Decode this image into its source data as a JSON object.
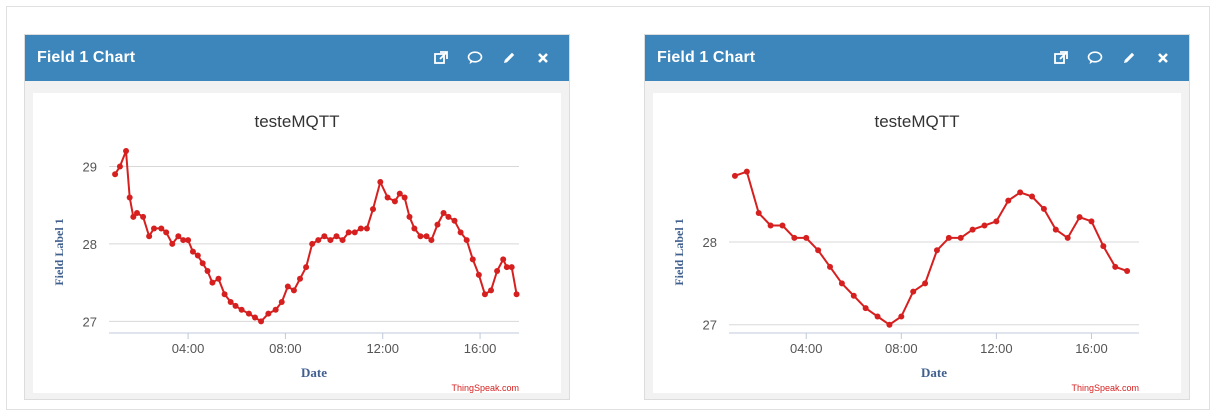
{
  "widgets": [
    {
      "header": {
        "title": "Field 1 Chart"
      },
      "icons": [
        "external-link-icon",
        "comment-icon",
        "pencil-icon",
        "close-icon"
      ],
      "chart_data": {
        "type": "line",
        "title": "testeMQTT",
        "xlabel": "Date",
        "ylabel": "Field Label 1",
        "credit": "ThingSpeak.com",
        "line_color": "#d62020",
        "grid": true,
        "x_unit": "hours (time of day)",
        "xlim": [
          0.75,
          17.6
        ],
        "ylim": [
          26.85,
          29.2
        ],
        "xticks": [
          {
            "v": 4,
            "label": "04:00"
          },
          {
            "v": 8,
            "label": "08:00"
          },
          {
            "v": 12,
            "label": "12:00"
          },
          {
            "v": 16,
            "label": "16:00"
          }
        ],
        "yticks": [
          {
            "v": 27,
            "label": "27"
          },
          {
            "v": 28,
            "label": "28"
          },
          {
            "v": 29,
            "label": "29"
          }
        ],
        "x": [
          1.0,
          1.2,
          1.45,
          1.6,
          1.75,
          1.9,
          2.15,
          2.4,
          2.6,
          2.9,
          3.1,
          3.35,
          3.6,
          3.8,
          4.0,
          4.2,
          4.4,
          4.6,
          4.8,
          5.0,
          5.25,
          5.5,
          5.75,
          5.95,
          6.2,
          6.5,
          6.75,
          7.0,
          7.3,
          7.6,
          7.85,
          8.1,
          8.35,
          8.6,
          8.85,
          9.1,
          9.35,
          9.6,
          9.85,
          10.1,
          10.35,
          10.6,
          10.85,
          11.1,
          11.35,
          11.6,
          11.9,
          12.2,
          12.5,
          12.7,
          12.9,
          13.1,
          13.3,
          13.55,
          13.8,
          14.0,
          14.25,
          14.5,
          14.7,
          14.95,
          15.2,
          15.45,
          15.7,
          15.95,
          16.2,
          16.45,
          16.7,
          16.95,
          17.1,
          17.3,
          17.5
        ],
        "values": [
          28.9,
          29.0,
          29.2,
          28.6,
          28.35,
          28.4,
          28.35,
          28.1,
          28.2,
          28.2,
          28.15,
          28.0,
          28.1,
          28.05,
          28.05,
          27.9,
          27.85,
          27.75,
          27.65,
          27.5,
          27.55,
          27.35,
          27.25,
          27.2,
          27.15,
          27.1,
          27.05,
          27.0,
          27.1,
          27.15,
          27.25,
          27.45,
          27.4,
          27.55,
          27.7,
          28.0,
          28.05,
          28.1,
          28.05,
          28.1,
          28.05,
          28.15,
          28.15,
          28.2,
          28.2,
          28.45,
          28.8,
          28.6,
          28.55,
          28.65,
          28.6,
          28.35,
          28.2,
          28.1,
          28.1,
          28.05,
          28.25,
          28.4,
          28.35,
          28.3,
          28.15,
          28.05,
          27.8,
          27.6,
          27.35,
          27.4,
          27.65,
          27.8,
          27.7,
          27.7,
          27.35
        ]
      }
    },
    {
      "header": {
        "title": "Field 1 Chart"
      },
      "icons": [
        "external-link-icon",
        "comment-icon",
        "pencil-icon",
        "close-icon"
      ],
      "chart_data": {
        "type": "line",
        "title": "testeMQTT",
        "xlabel": "Date",
        "ylabel": "Field Label 1",
        "credit": "ThingSpeak.com",
        "line_color": "#d62020",
        "grid": true,
        "x_unit": "hours (time of day)",
        "xlim": [
          0.75,
          18.0
        ],
        "ylim": [
          26.9,
          29.1
        ],
        "xticks": [
          {
            "v": 4,
            "label": "04:00"
          },
          {
            "v": 8,
            "label": "08:00"
          },
          {
            "v": 12,
            "label": "12:00"
          },
          {
            "v": 16,
            "label": "16:00"
          }
        ],
        "yticks": [
          {
            "v": 27,
            "label": "27"
          },
          {
            "v": 28,
            "label": "28"
          }
        ],
        "x": [
          1.0,
          1.5,
          2.0,
          2.5,
          3.0,
          3.5,
          4.0,
          4.5,
          5.0,
          5.5,
          6.0,
          6.5,
          7.0,
          7.5,
          8.0,
          8.5,
          9.0,
          9.5,
          10.0,
          10.5,
          11.0,
          11.5,
          12.0,
          12.5,
          13.0,
          13.5,
          14.0,
          14.5,
          15.0,
          15.5,
          16.0,
          16.5,
          17.0,
          17.5
        ],
        "values": [
          28.8,
          28.85,
          28.35,
          28.2,
          28.2,
          28.05,
          28.05,
          27.9,
          27.7,
          27.5,
          27.35,
          27.2,
          27.1,
          27.0,
          27.1,
          27.4,
          27.5,
          27.9,
          28.05,
          28.05,
          28.15,
          28.2,
          28.25,
          28.5,
          28.6,
          28.55,
          28.4,
          28.15,
          28.05,
          28.3,
          28.25,
          27.95,
          27.7,
          27.65
        ]
      }
    }
  ]
}
